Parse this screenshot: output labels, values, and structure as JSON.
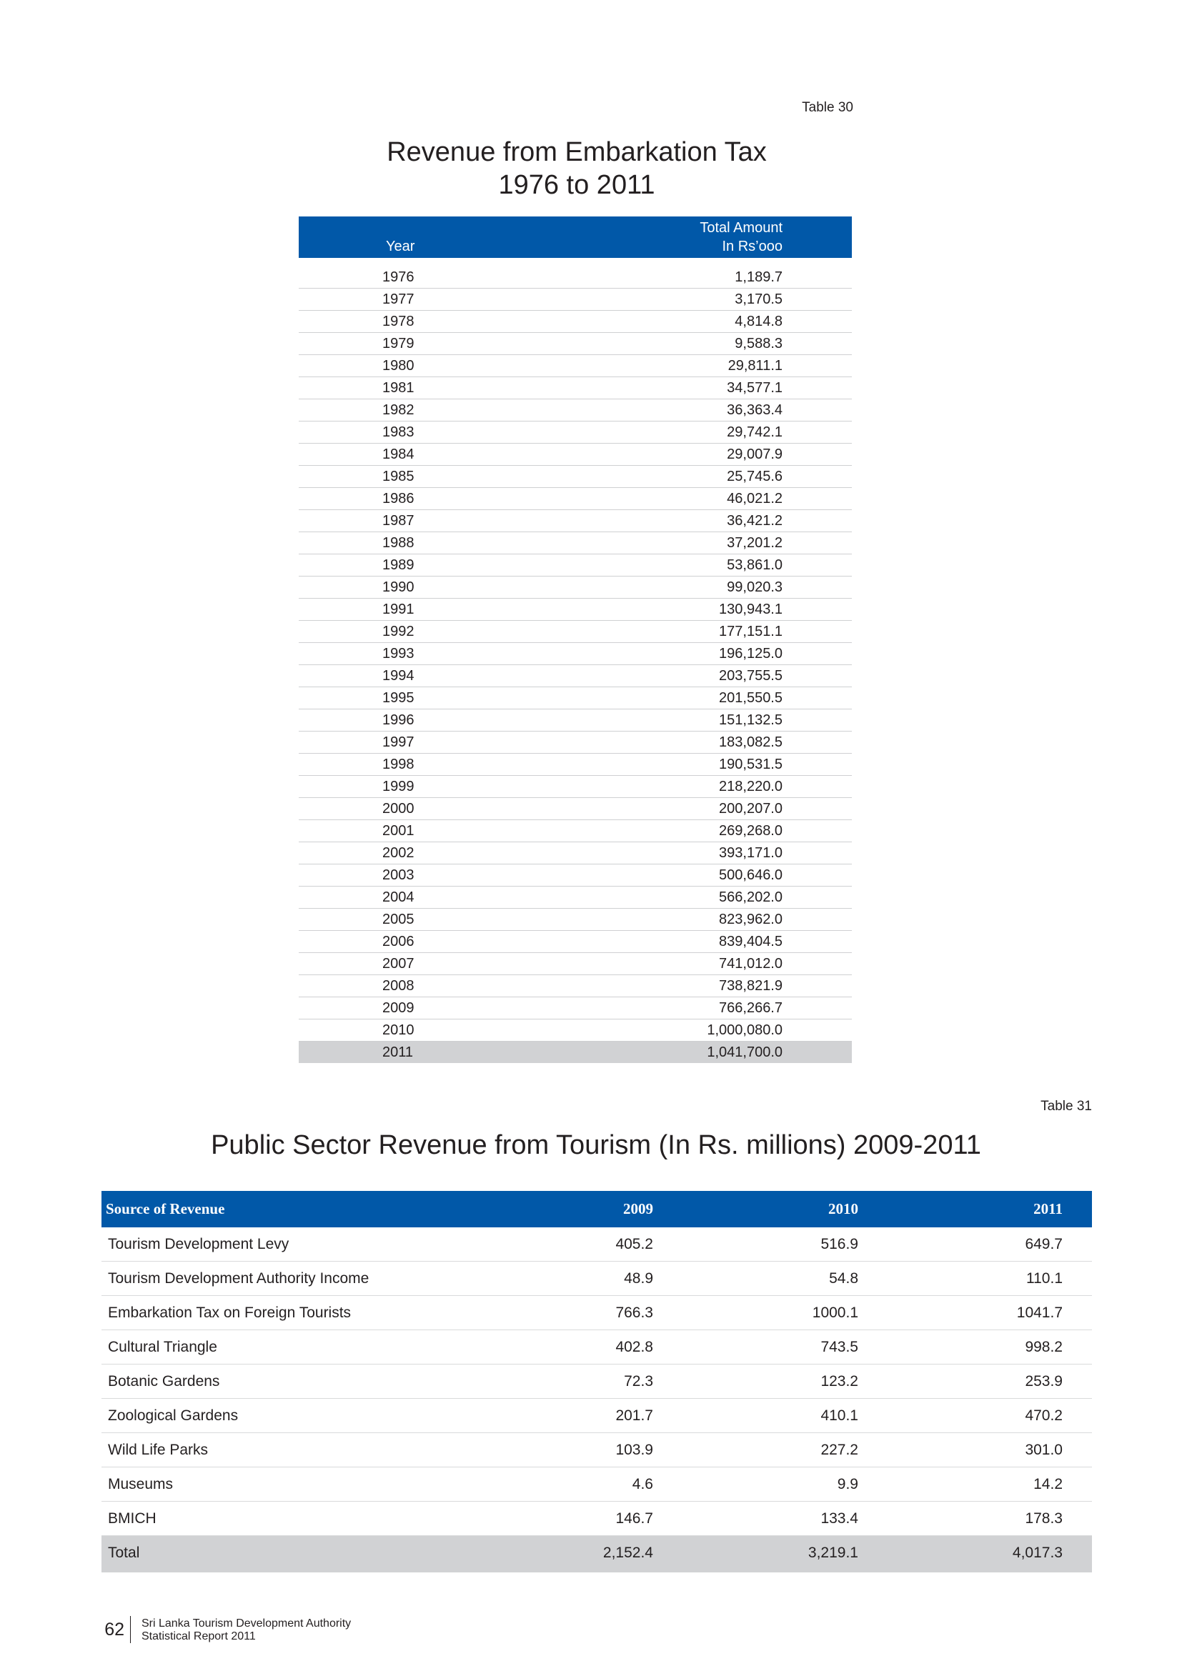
{
  "table30": {
    "label": "Table 30",
    "title_line1": "Revenue from Embarkation Tax",
    "title_line2": "1976 to 2011",
    "header_year": "Year",
    "header_amount_line1": "Total Amount",
    "header_amount_line2": "In Rs’ooo",
    "rows": [
      {
        "year": "1976",
        "amount": "1,189.7"
      },
      {
        "year": "1977",
        "amount": "3,170.5"
      },
      {
        "year": "1978",
        "amount": "4,814.8"
      },
      {
        "year": "1979",
        "amount": "9,588.3"
      },
      {
        "year": "1980",
        "amount": "29,811.1"
      },
      {
        "year": "1981",
        "amount": "34,577.1"
      },
      {
        "year": "1982",
        "amount": "36,363.4"
      },
      {
        "year": "1983",
        "amount": "29,742.1"
      },
      {
        "year": "1984",
        "amount": "29,007.9"
      },
      {
        "year": "1985",
        "amount": "25,745.6"
      },
      {
        "year": "1986",
        "amount": "46,021.2"
      },
      {
        "year": "1987",
        "amount": "36,421.2"
      },
      {
        "year": "1988",
        "amount": "37,201.2"
      },
      {
        "year": "1989",
        "amount": "53,861.0"
      },
      {
        "year": "1990",
        "amount": "99,020.3"
      },
      {
        "year": "1991",
        "amount": "130,943.1"
      },
      {
        "year": "1992",
        "amount": "177,151.1"
      },
      {
        "year": "1993",
        "amount": "196,125.0"
      },
      {
        "year": "1994",
        "amount": "203,755.5"
      },
      {
        "year": "1995",
        "amount": "201,550.5"
      },
      {
        "year": "1996",
        "amount": "151,132.5"
      },
      {
        "year": "1997",
        "amount": "183,082.5"
      },
      {
        "year": "1998",
        "amount": "190,531.5"
      },
      {
        "year": "1999",
        "amount": "218,220.0"
      },
      {
        "year": "2000",
        "amount": "200,207.0"
      },
      {
        "year": "2001",
        "amount": "269,268.0"
      },
      {
        "year": "2002",
        "amount": "393,171.0"
      },
      {
        "year": "2003",
        "amount": "500,646.0"
      },
      {
        "year": "2004",
        "amount": "566,202.0"
      },
      {
        "year": "2005",
        "amount": "823,962.0"
      },
      {
        "year": "2006",
        "amount": "839,404.5"
      },
      {
        "year": "2007",
        "amount": "741,012.0"
      },
      {
        "year": "2008",
        "amount": "738,821.9"
      },
      {
        "year": "2009",
        "amount": "766,266.7"
      },
      {
        "year": "2010",
        "amount": "1,000,080.0"
      },
      {
        "year": "2011",
        "amount": "1,041,700.0"
      }
    ]
  },
  "table31": {
    "label": "Table 31",
    "title": "Public Sector Revenue from Tourism (In Rs. millions) 2009-2011",
    "headers": {
      "source": "Source of Revenue",
      "y2009": "2009",
      "y2010": "2010",
      "y2011": "2011"
    },
    "rows": [
      {
        "source": "Tourism Development Levy",
        "y2009": "405.2",
        "y2010": "516.9",
        "y2011": "649.7"
      },
      {
        "source": "Tourism Development Authority  Income",
        "y2009": "48.9",
        "y2010": "54.8",
        "y2011": "110.1"
      },
      {
        "source": "Embarkation Tax on Foreign Tourists",
        "y2009": "766.3",
        "y2010": "1000.1",
        "y2011": "1041.7"
      },
      {
        "source": "Cultural Triangle",
        "y2009": "402.8",
        "y2010": "743.5",
        "y2011": "998.2"
      },
      {
        "source": "Botanic Gardens",
        "y2009": "72.3",
        "y2010": "123.2",
        "y2011": "253.9"
      },
      {
        "source": "Zoological Gardens",
        "y2009": "201.7",
        "y2010": "410.1",
        "y2011": "470.2"
      },
      {
        "source": "Wild Life  Parks",
        "y2009": "103.9",
        "y2010": "227.2",
        "y2011": "301.0"
      },
      {
        "source": "Museums",
        "y2009": "4.6",
        "y2010": "9.9",
        "y2011": "14.2"
      },
      {
        "source": "BMICH",
        "y2009": "146.7",
        "y2010": "133.4",
        "y2011": "178.3"
      }
    ],
    "total": {
      "source": "Total",
      "y2009": "2,152.4",
      "y2010": "3,219.1",
      "y2011": "4,017.3"
    }
  },
  "footer": {
    "page_number": "62",
    "org_line1": "Sri Lanka Tourism Development Authority",
    "org_line2": "Statistical Report 2011"
  }
}
